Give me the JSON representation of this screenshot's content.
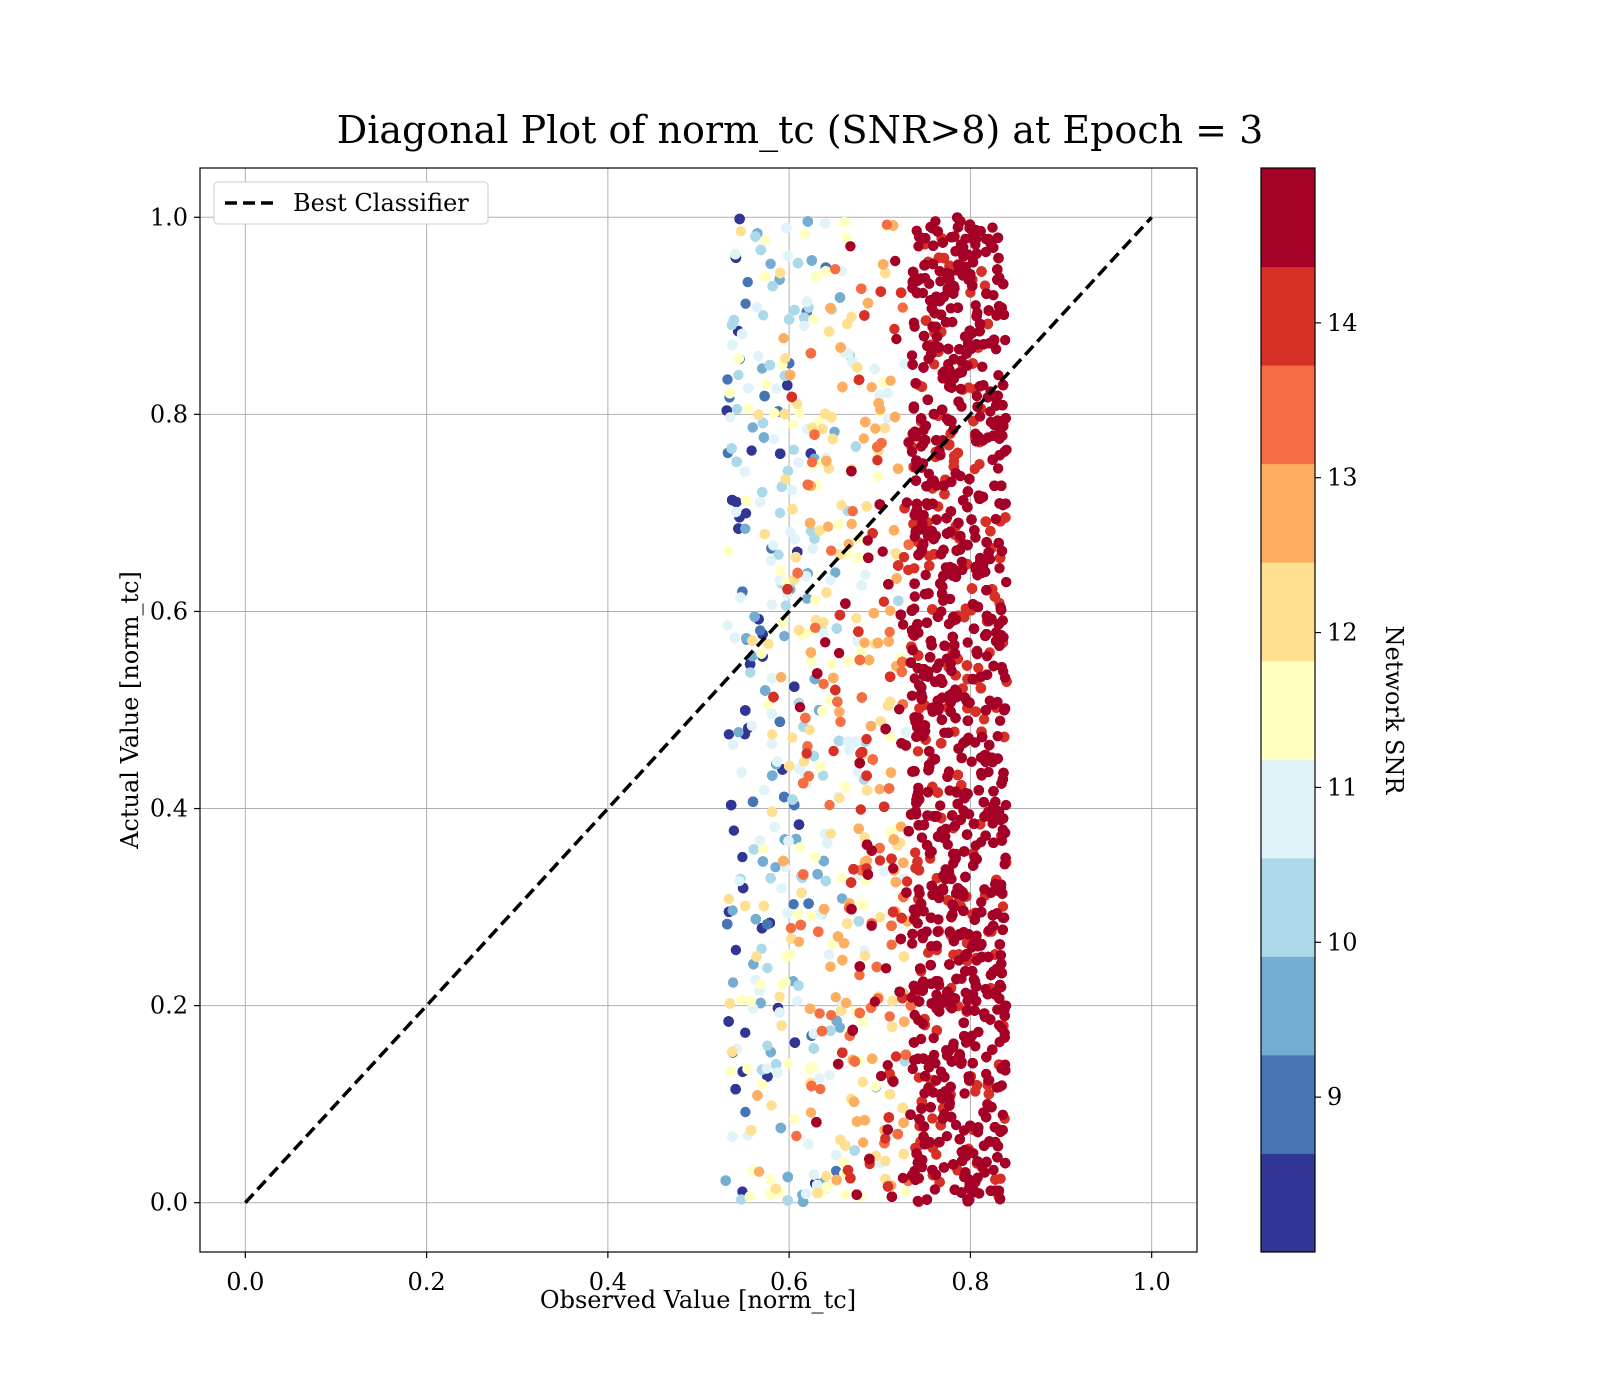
{
  "chart_data": {
    "type": "scatter",
    "title": "Diagonal Plot of norm_tc (SNR>8) at Epoch = 3",
    "xlabel": "Observed Value [norm_tc]",
    "ylabel": "Actual Value [norm_tc]",
    "xlim": [
      -0.05,
      1.05
    ],
    "ylim": [
      -0.05,
      1.05
    ],
    "xticks": [
      "0.0",
      "0.2",
      "0.4",
      "0.6",
      "0.8",
      "1.0"
    ],
    "yticks": [
      "0.0",
      "0.2",
      "0.4",
      "0.6",
      "0.8",
      "1.0"
    ],
    "grid": true,
    "legend": {
      "placement": "upper-left",
      "entries": [
        "Best Classifier"
      ]
    },
    "reference_line": {
      "name": "Best Classifier",
      "x": [
        0,
        1
      ],
      "y": [
        0,
        1
      ],
      "style": "dashed",
      "color": "#000000"
    },
    "scatter_distribution": {
      "x_range": [
        0.53,
        0.86
      ],
      "y_range": [
        0.0,
        1.0
      ],
      "snr_range": [
        8.0,
        15.0
      ],
      "trend": "higher Network SNR concentrated at larger observed values (0.73–0.84)"
    },
    "colorbar": {
      "label": "Network SNR",
      "range": [
        8.0,
        15.0
      ],
      "ticks": [
        "9",
        "10",
        "11",
        "12",
        "13",
        "14"
      ],
      "tick_values": [
        9,
        10,
        11,
        12,
        13,
        14
      ],
      "colors": [
        "#313695",
        "#4575b4",
        "#74add1",
        "#abd9e9",
        "#e0f3f8",
        "#ffffbf",
        "#fee090",
        "#fdae61",
        "#f46d43",
        "#d73027",
        "#a50026"
      ]
    }
  }
}
